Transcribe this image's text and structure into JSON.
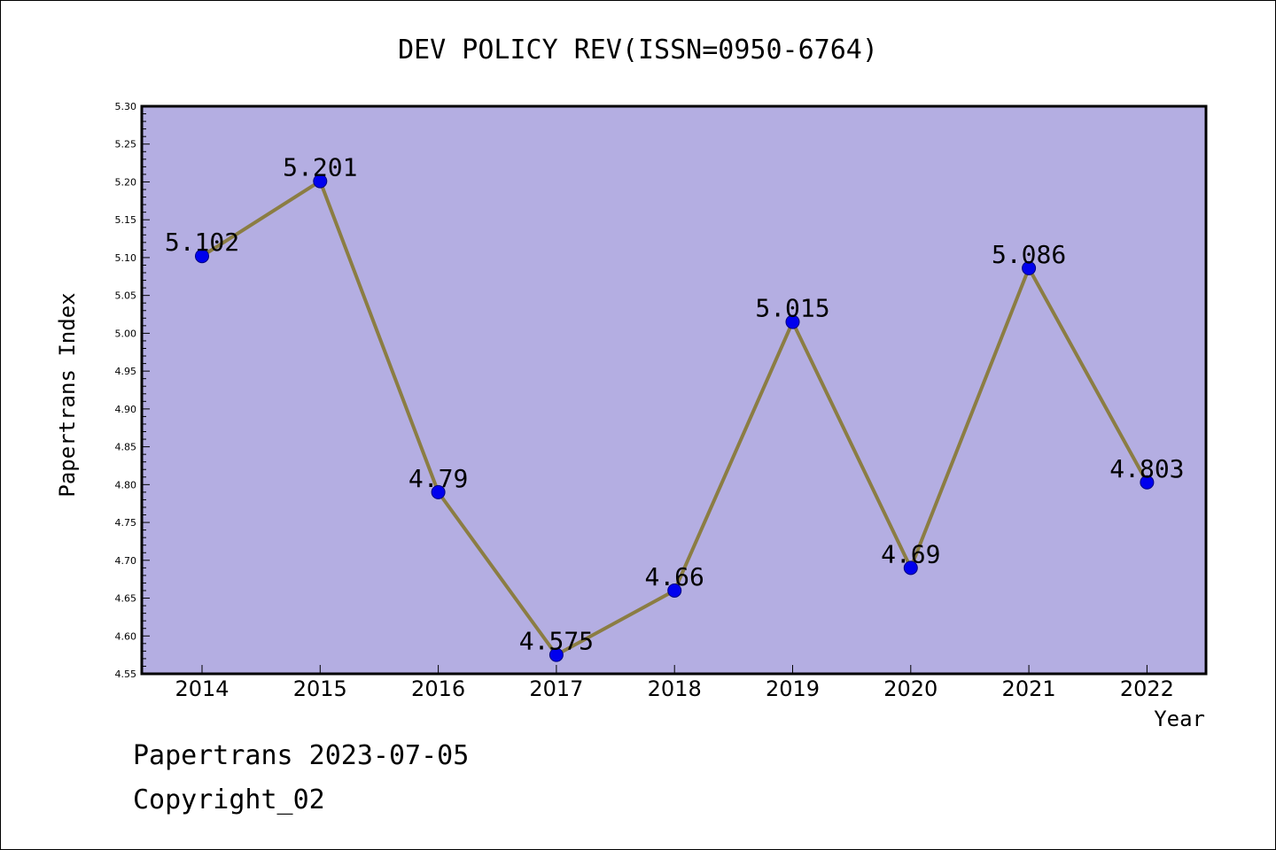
{
  "chart_data": {
    "type": "line",
    "title": "DEV POLICY REV(ISSN=0950-6764)",
    "xlabel": "Year",
    "ylabel": "Papertrans Index",
    "categories": [
      "2014",
      "2015",
      "2016",
      "2017",
      "2018",
      "2019",
      "2020",
      "2021",
      "2022"
    ],
    "values": [
      5.102,
      5.201,
      4.79,
      4.575,
      4.66,
      5.015,
      4.69,
      5.086,
      4.803
    ],
    "data_labels": [
      "5.102",
      "5.201",
      "4.79",
      "4.575",
      "4.66",
      "5.015",
      "4.69",
      "5.086",
      "4.803"
    ],
    "ylim": [
      4.55,
      5.3
    ],
    "yticks": [
      "4.55",
      "4.60",
      "4.65",
      "4.70",
      "4.75",
      "4.80",
      "4.85",
      "4.90",
      "4.95",
      "5.00",
      "5.05",
      "5.10",
      "5.15",
      "5.20",
      "5.25",
      "5.30"
    ],
    "grid": false,
    "legend": "none",
    "colors": {
      "plot_background": "#b4aee2",
      "line": "#8b7d43",
      "marker": "#0000ee",
      "marker_edge": "#000080"
    }
  },
  "footer": {
    "date_line": "Papertrans 2023-07-05",
    "copyright_line": "Copyright_02"
  }
}
